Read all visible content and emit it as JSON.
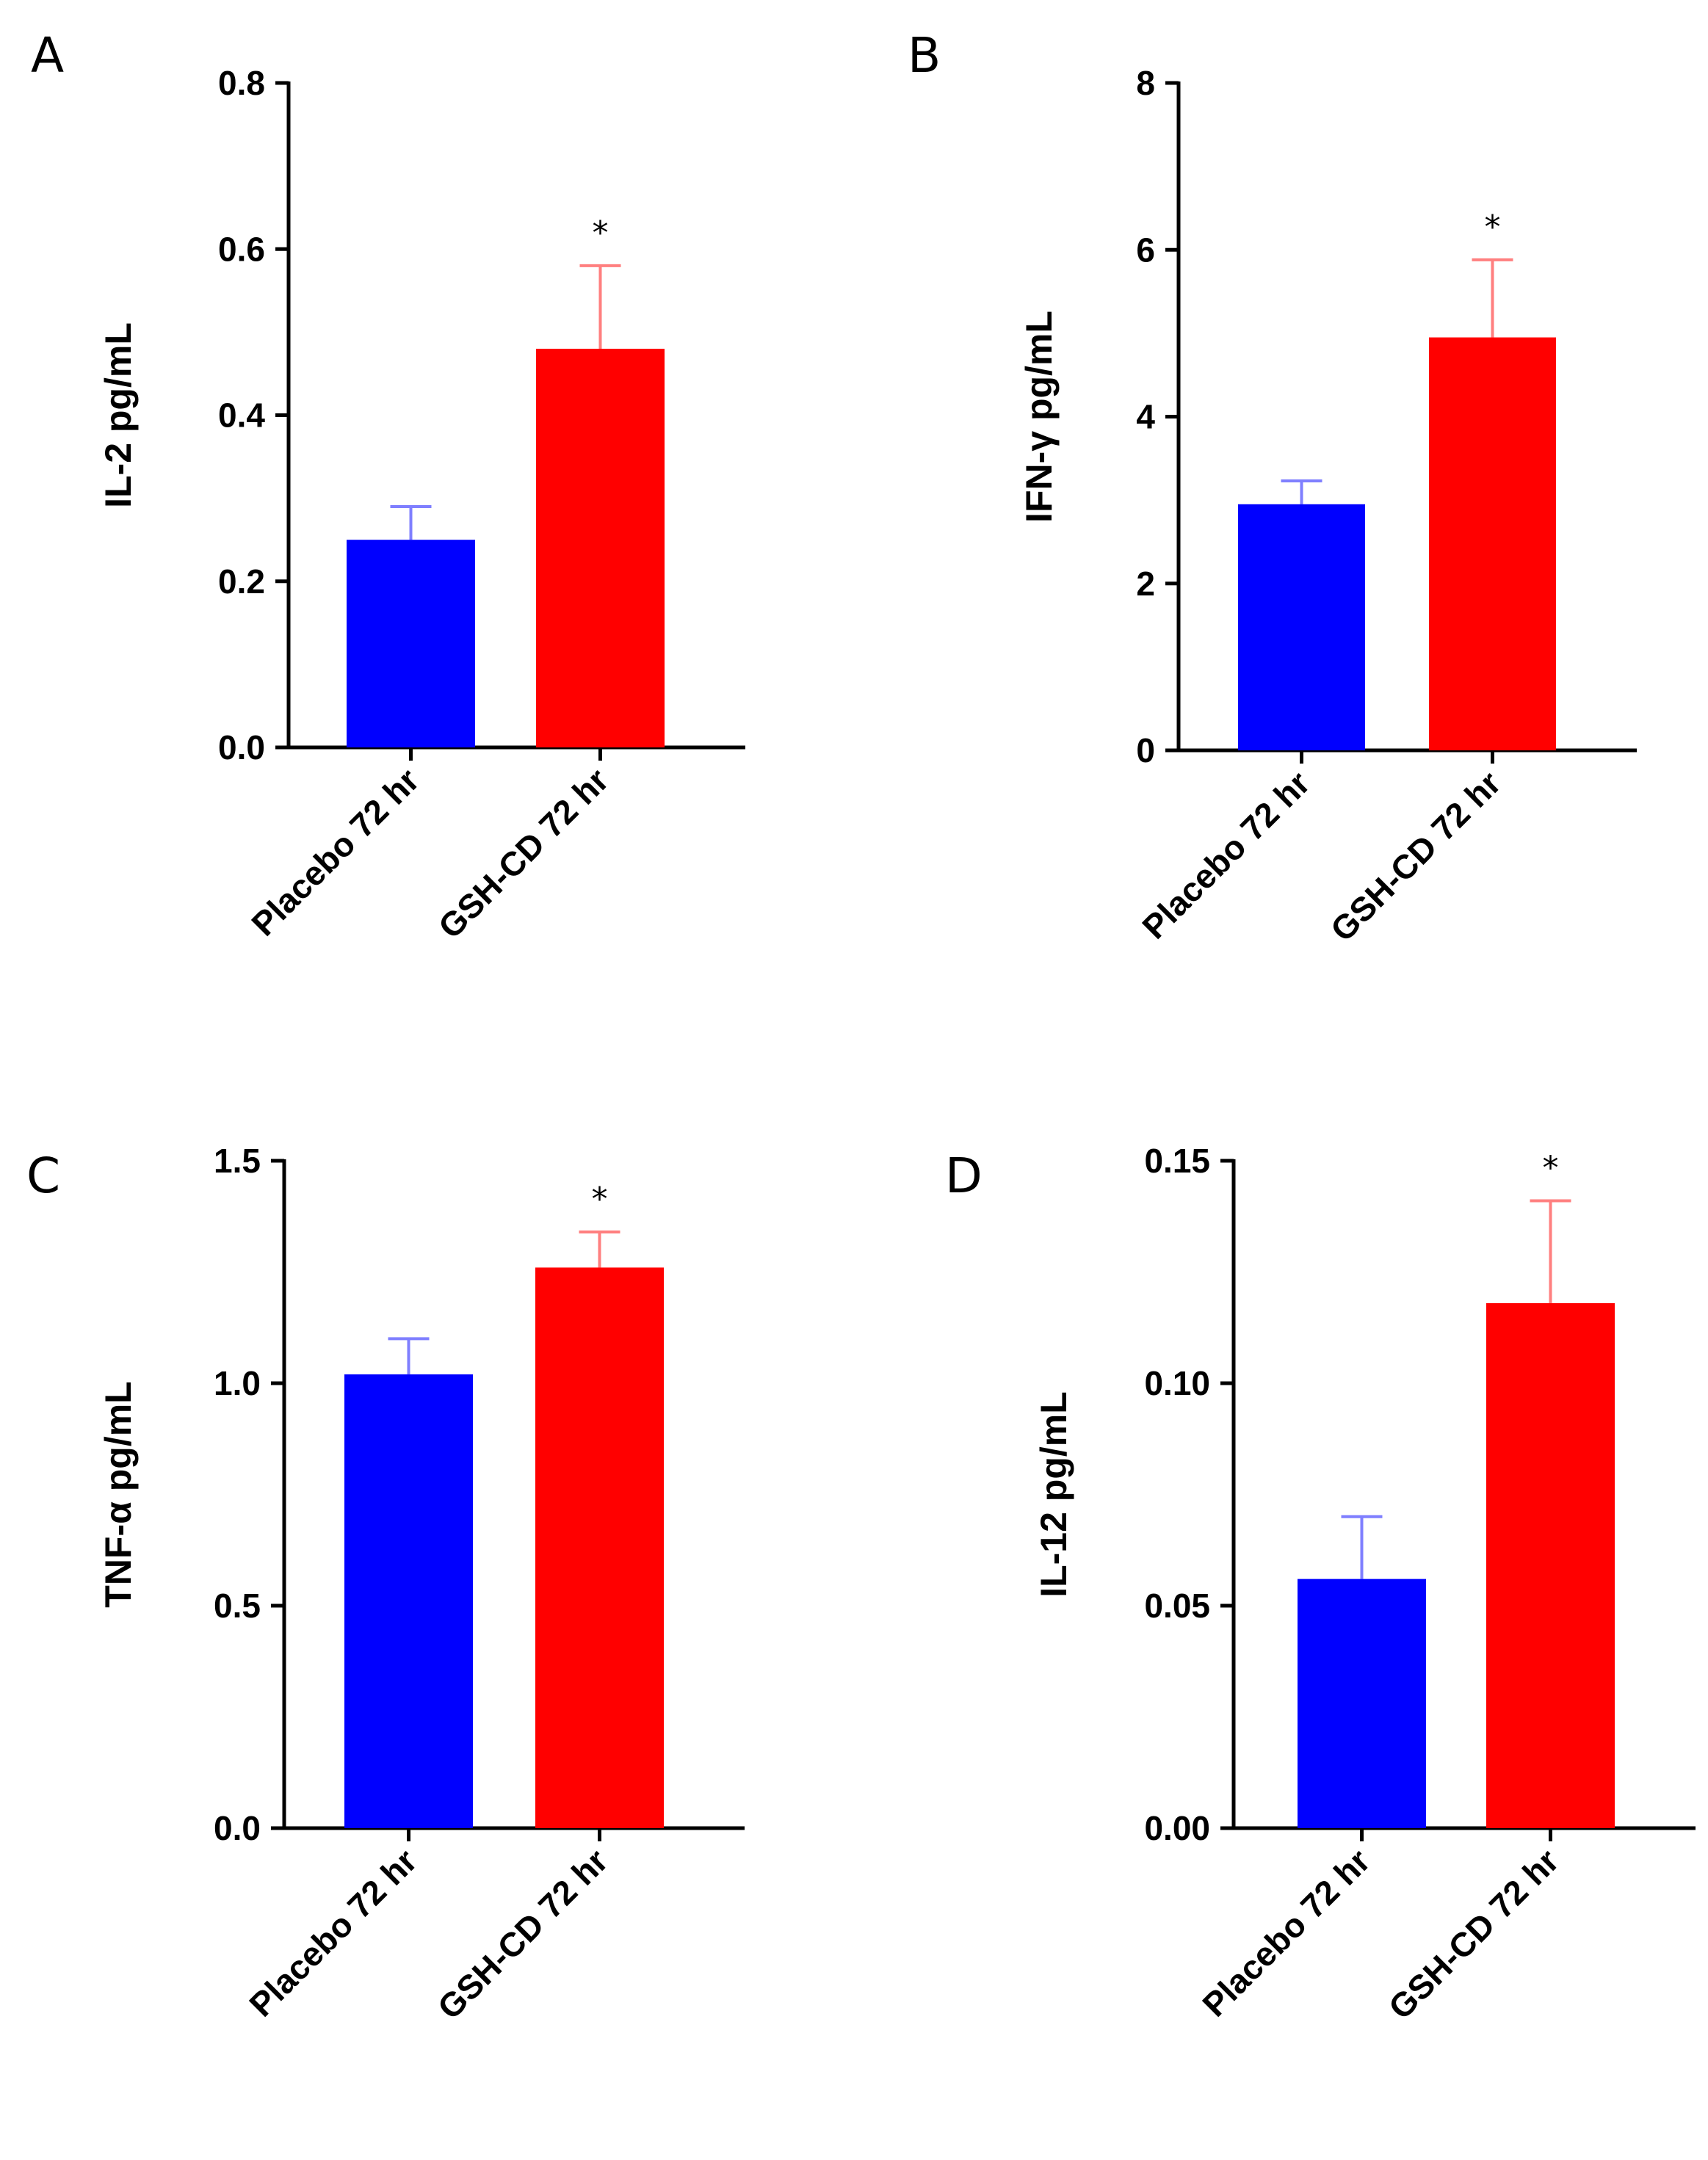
{
  "chart_data": [
    {
      "panel": "A",
      "type": "bar",
      "categories": [
        "Placebo 72 hr",
        "GSH-CD 72 hr"
      ],
      "values": [
        0.25,
        0.48
      ],
      "errors": [
        0.04,
        0.1
      ],
      "significance": [
        "",
        "*"
      ],
      "ylabel": "IL-2 pg/mL",
      "ylim": [
        0,
        0.8
      ],
      "yticks": [
        "0.0",
        "0.2",
        "0.4",
        "0.6",
        "0.8"
      ]
    },
    {
      "panel": "B",
      "type": "bar",
      "categories": [
        "Placebo 72 hr",
        "GSH-CD 72 hr"
      ],
      "values": [
        2.95,
        4.95
      ],
      "errors": [
        0.28,
        0.93
      ],
      "significance": [
        "",
        "*"
      ],
      "ylabel": "IFN-γ pg/mL",
      "ylim": [
        0,
        8
      ],
      "yticks": [
        "0",
        "2",
        "4",
        "6",
        "8"
      ]
    },
    {
      "panel": "C",
      "type": "bar",
      "categories": [
        "Placebo 72 hr",
        "GSH-CD 72 hr"
      ],
      "values": [
        1.02,
        1.26
      ],
      "errors": [
        0.08,
        0.08
      ],
      "significance": [
        "",
        "*"
      ],
      "ylabel": "TNF-α pg/mL",
      "ylim": [
        0,
        1.5
      ],
      "yticks": [
        "0.0",
        "0.5",
        "1.0",
        "1.5"
      ]
    },
    {
      "panel": "D",
      "type": "bar",
      "categories": [
        "Placebo 72 hr",
        "GSH-CD 72 hr"
      ],
      "values": [
        0.056,
        0.118
      ],
      "errors": [
        0.014,
        0.023
      ],
      "significance": [
        "",
        "*"
      ],
      "ylabel": "IL-12 pg/mL",
      "ylim": [
        0,
        0.15
      ],
      "yticks": [
        "0.00",
        "0.05",
        "0.10",
        "0.15"
      ]
    }
  ],
  "colors": {
    "placebo_fill": "#0000ff",
    "placebo_error": "#7f7fff",
    "gsh_fill": "#ff0000",
    "gsh_error": "#ff7f7f",
    "axis": "#000000"
  }
}
